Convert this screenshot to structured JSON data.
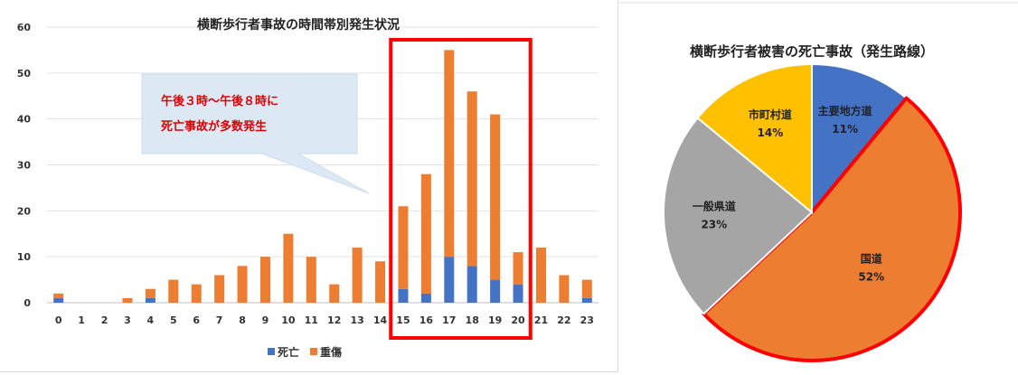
{
  "colors": {
    "death": "#4472c4",
    "injury": "#ed7d31",
    "highlight": "#ff0000",
    "callout_bg": "#dce9f5",
    "pie_prefectural": "#4472c4",
    "pie_national": "#ed7d31",
    "pie_general": "#a5a5a5",
    "pie_municipal": "#ffc000"
  },
  "callout": {
    "line1": "午後３時～午後８時に",
    "line2": "死亡事故が多数発生"
  },
  "chart_data": [
    {
      "type": "bar",
      "stacked": true,
      "title": "横断歩行者事故の時間帯別発生状況",
      "categories": [
        "0",
        "1",
        "2",
        "3",
        "4",
        "5",
        "6",
        "7",
        "8",
        "9",
        "10",
        "11",
        "12",
        "13",
        "14",
        "15",
        "16",
        "17",
        "18",
        "19",
        "20",
        "21",
        "22",
        "23"
      ],
      "series": [
        {
          "name": "死亡",
          "values": [
            1,
            0,
            0,
            0,
            1,
            0,
            0,
            0,
            0,
            0,
            0,
            0,
            0,
            0,
            0,
            3,
            2,
            10,
            8,
            5,
            4,
            0,
            0,
            1
          ]
        },
        {
          "name": "重傷",
          "values": [
            1,
            0,
            0,
            1,
            2,
            5,
            4,
            6,
            8,
            10,
            15,
            10,
            4,
            12,
            9,
            18,
            26,
            45,
            38,
            36,
            7,
            12,
            6,
            4
          ]
        }
      ],
      "ylim": [
        0,
        60
      ],
      "yticks": [
        0,
        10,
        20,
        30,
        40,
        50,
        60
      ],
      "grid": true,
      "legend": "bottom",
      "highlight_categories": [
        "15",
        "20"
      ]
    },
    {
      "type": "pie",
      "title": "横断歩行者被害の死亡事故（発生路線）",
      "slices": [
        {
          "label": "主要地方道",
          "value": 11,
          "pct": "11%"
        },
        {
          "label": "国道",
          "value": 52,
          "pct": "52%"
        },
        {
          "label": "一般県道",
          "value": 23,
          "pct": "23%"
        },
        {
          "label": "市町村道",
          "value": 14,
          "pct": "14%"
        }
      ],
      "highlight_slice": "国道"
    }
  ]
}
